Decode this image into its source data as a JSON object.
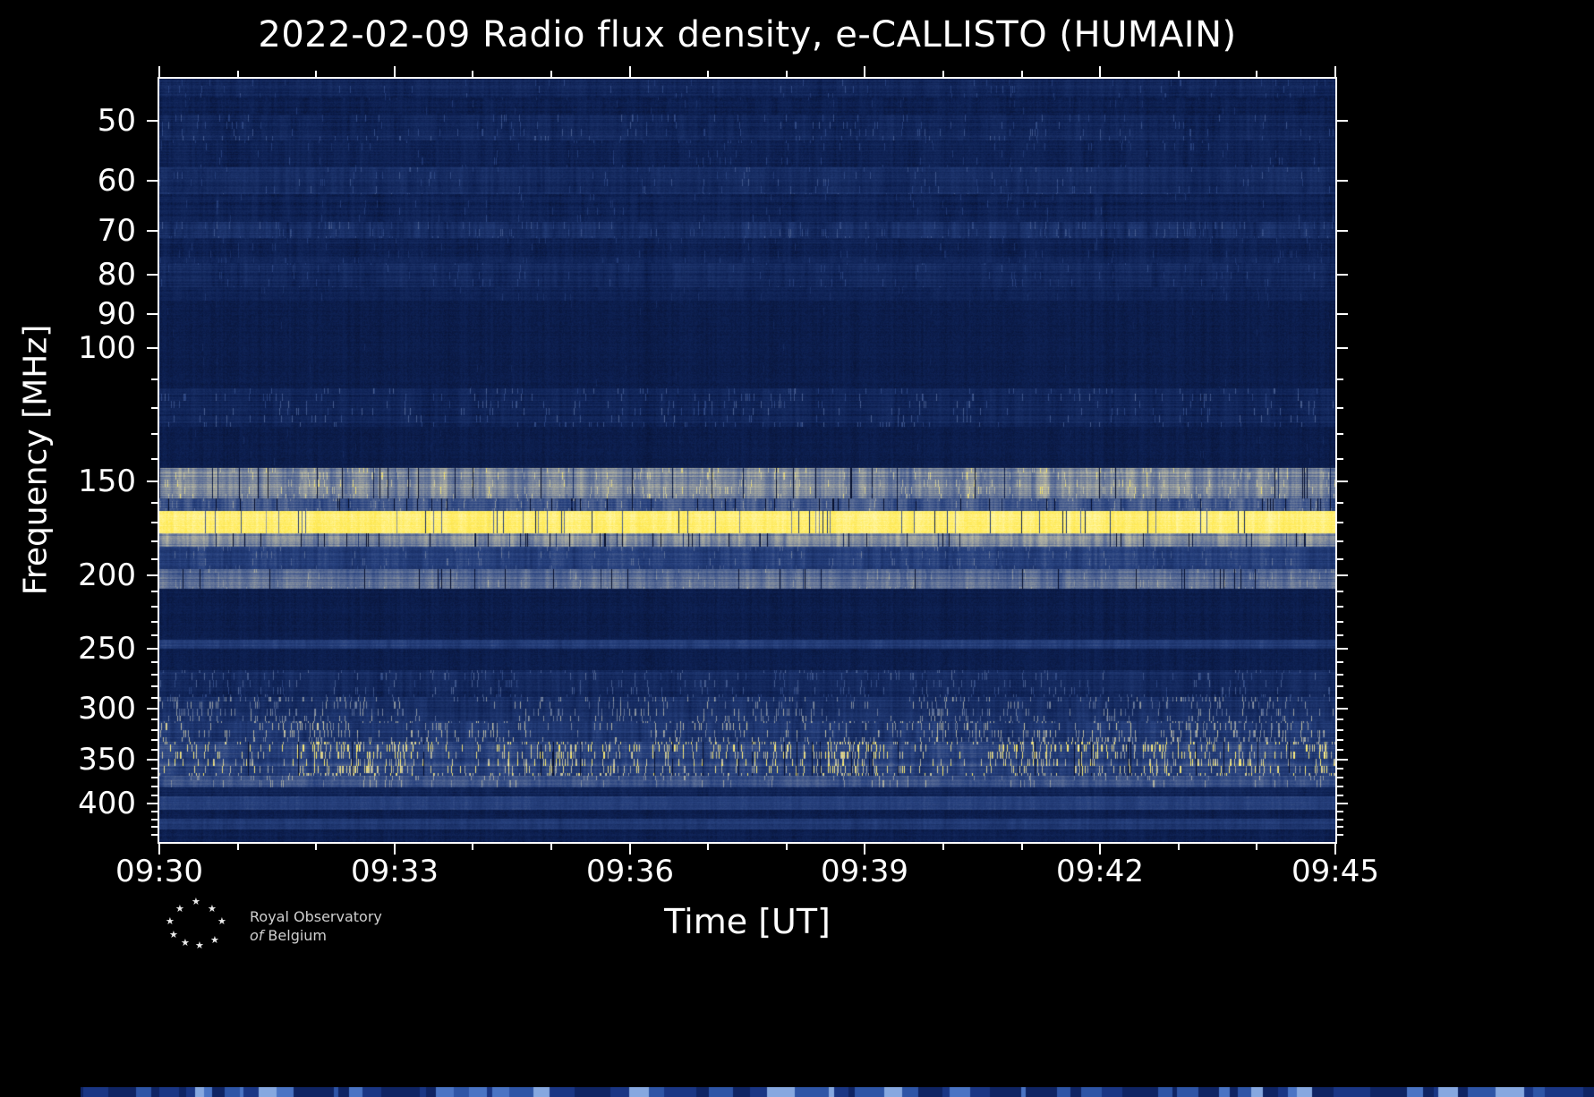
{
  "title": "2022-02-09 Radio flux density, e-CALLISTO (HUMAIN)",
  "axes": {
    "xlabel": "Time [UT]",
    "ylabel": "Frequency [MHz]",
    "x_tick_labels": [
      "09:30",
      "09:33",
      "09:36",
      "09:39",
      "09:42",
      "09:45"
    ],
    "y_tick_labels": [
      "50",
      "60",
      "70",
      "80",
      "90",
      "100",
      "150",
      "200",
      "250",
      "300",
      "350",
      "400"
    ]
  },
  "logo": {
    "line1": "Royal Observatory",
    "line2_italic": "of",
    "line2_text": "Belgium"
  },
  "chart_data": {
    "type": "heatmap",
    "title": "2022-02-09 Radio flux density, e-CALLISTO (HUMAIN)",
    "date": "2022-02-09",
    "instrument": "e-CALLISTO",
    "station": "HUMAIN",
    "xlabel": "Time [UT]",
    "ylabel": "Frequency [MHz]",
    "x_range_ut": [
      "09:30",
      "09:45"
    ],
    "x_major_tick_minutes": 3,
    "x_minor_tick_minutes": 1,
    "y_scale": "log",
    "y_axis_inverted": true,
    "y_range_mhz": [
      44,
      450
    ],
    "y_major_ticks_mhz": [
      50,
      60,
      70,
      80,
      90,
      100,
      150,
      200,
      250,
      300,
      350,
      400
    ],
    "y_minor_ticks_mhz": [
      110,
      120,
      130,
      140,
      160,
      170,
      180,
      190,
      210,
      220,
      230,
      240,
      260,
      270,
      280,
      290,
      310,
      320,
      330,
      340,
      360,
      370,
      380,
      390,
      410,
      420,
      430,
      440
    ],
    "background_level": 0.085,
    "colormap_stops": [
      [
        0.0,
        "#060f2d"
      ],
      [
        0.1,
        "#0d2052"
      ],
      [
        0.32,
        "#28427f"
      ],
      [
        0.5,
        "#5d6f97"
      ],
      [
        0.66,
        "#a0a4a0"
      ],
      [
        0.8,
        "#d6cf9f"
      ],
      [
        0.9,
        "#ffe94f"
      ],
      [
        1.0,
        "#fff7a8"
      ]
    ],
    "bands": [
      {
        "f_lo": 44,
        "f_hi": 46.5,
        "base": 0.13,
        "striation": 0.05,
        "row_jitter": 0.04,
        "speckle_p": 0.02,
        "speckle_amp": 0.2,
        "desc": "faint noisy strip at very top of plot"
      },
      {
        "f_lo": 46.5,
        "f_hi": 49,
        "base": 0.1,
        "striation": 0.035,
        "row_jitter": 0.03,
        "speckle_p": 0.012,
        "speckle_amp": 0.15,
        "desc": "dark blue background with weak texture"
      },
      {
        "f_lo": 49,
        "f_hi": 53,
        "base": 0.145,
        "striation": 0.055,
        "row_jitter": 0.05,
        "speckle_p": 0.03,
        "speckle_amp": 0.25,
        "desc": "slightly brighter speckled band near 50 MHz"
      },
      {
        "f_lo": 53,
        "f_hi": 57.5,
        "base": 0.115,
        "striation": 0.04,
        "row_jitter": 0.035,
        "speckle_p": 0.02,
        "speckle_amp": 0.2,
        "desc": "dark blue with sparse gray speckles"
      },
      {
        "f_lo": 57.5,
        "f_hi": 62.5,
        "base": 0.165,
        "striation": 0.06,
        "row_jitter": 0.055,
        "speckle_p": 0.03,
        "speckle_amp": 0.22,
        "desc": "brighter noisy band around 60 MHz"
      },
      {
        "f_lo": 62.5,
        "f_hi": 68,
        "base": 0.11,
        "striation": 0.04,
        "row_jitter": 0.03,
        "speckle_p": 0.015,
        "speckle_amp": 0.18,
        "desc": "dark blue background"
      },
      {
        "f_lo": 68,
        "f_hi": 71.5,
        "base": 0.185,
        "striation": 0.1,
        "row_jitter": 0.05,
        "speckle_p": 0.04,
        "speckle_amp": 0.2,
        "desc": "dashed brighter line near 70 MHz"
      },
      {
        "f_lo": 71.5,
        "f_hi": 77,
        "base": 0.12,
        "striation": 0.04,
        "row_jitter": 0.04,
        "speckle_p": 0.015,
        "speckle_amp": 0.15,
        "desc": "dark blue background"
      },
      {
        "f_lo": 77,
        "f_hi": 83,
        "base": 0.15,
        "striation": 0.055,
        "row_jitter": 0.05,
        "speckle_p": 0.02,
        "speckle_amp": 0.18,
        "desc": "weak striped band near 80 MHz"
      },
      {
        "f_lo": 83,
        "f_hi": 86.5,
        "base": 0.115,
        "striation": 0.03,
        "row_jitter": 0.03,
        "speckle_p": 0.01,
        "speckle_amp": 0.12,
        "desc": "dark blue background"
      },
      {
        "f_lo": 86.5,
        "f_hi": 113,
        "base": 0.082,
        "striation": 0.008,
        "row_jitter": 0.012,
        "speckle_p": 0.002,
        "speckle_amp": 0.08,
        "desc": "very quiet uniform dark band 87-113 MHz"
      },
      {
        "f_lo": 113,
        "f_hi": 127,
        "base": 0.135,
        "striation": 0.05,
        "row_jitter": 0.05,
        "speckle_p": 0.05,
        "speckle_amp": 0.3,
        "desc": "speckled RFI band between 100 and 150 MHz"
      },
      {
        "f_lo": 127,
        "f_hi": 144,
        "base": 0.082,
        "striation": 0.01,
        "row_jitter": 0.012,
        "speckle_p": 0.003,
        "speckle_amp": 0.08,
        "desc": "quiet uniform dark band"
      },
      {
        "f_lo": 144,
        "f_hi": 158,
        "base": 0.55,
        "striation": 0.16,
        "row_jitter": 0.1,
        "speckle_p": 0.05,
        "speckle_amp": 0.22,
        "crack_p": 0.04,
        "desc": "bright light-gray striated band ~145-158 MHz"
      },
      {
        "f_lo": 158,
        "f_hi": 164,
        "base": 0.38,
        "striation": 0.15,
        "row_jitter": 0.08,
        "speckle_p": 0.04,
        "speckle_amp": 0.2,
        "crack_p": 0.04,
        "desc": "transition band with vertical striations"
      },
      {
        "f_lo": 164,
        "f_hi": 176,
        "base": 0.94,
        "striation": 0.05,
        "row_jitter": 0.025,
        "speckle_p": 0.0,
        "speckle_amp": 0.0,
        "crack_p": 0.045,
        "desc": "saturated bright yellow emission band ~165-175 MHz with thin dark vertical cracks"
      },
      {
        "f_lo": 176,
        "f_hi": 183,
        "base": 0.56,
        "striation": 0.15,
        "row_jitter": 0.07,
        "speckle_p": 0.0,
        "speckle_amp": 0.0,
        "crack_p": 0.05,
        "desc": "yellow-gray band below the bright band"
      },
      {
        "f_lo": 183,
        "f_hi": 196,
        "base": 0.3,
        "striation": 0.11,
        "row_jitter": 0.06,
        "speckle_p": 0.03,
        "speckle_amp": 0.2,
        "desc": "medium blue-gray striated band"
      },
      {
        "f_lo": 196,
        "f_hi": 208,
        "base": 0.47,
        "striation": 0.11,
        "row_jitter": 0.07,
        "speckle_p": 0.025,
        "speckle_amp": 0.15,
        "crack_p": 0.02,
        "desc": "light gray-beige band near 200 MHz"
      },
      {
        "f_lo": 208,
        "f_hi": 243,
        "base": 0.083,
        "striation": 0.009,
        "row_jitter": 0.013,
        "speckle_p": 0.0,
        "speckle_amp": 0.0,
        "desc": "quiet dark band 208-243 MHz"
      },
      {
        "f_lo": 243,
        "f_hi": 250,
        "base": 0.28,
        "striation": 0.07,
        "row_jitter": 0.05,
        "speckle_p": 0.0,
        "speckle_amp": 0.0,
        "desc": "thin gray band near 247 MHz"
      },
      {
        "f_lo": 250,
        "f_hi": 267,
        "base": 0.09,
        "striation": 0.012,
        "row_jitter": 0.015,
        "speckle_p": 0.0,
        "speckle_amp": 0.0,
        "desc": "quiet dark band"
      },
      {
        "f_lo": 267,
        "f_hi": 290,
        "base": 0.165,
        "striation": 0.06,
        "row_jitter": 0.05,
        "speckle_p": 0.06,
        "speckle_amp": 0.3,
        "desc": "noisy blue speckled band ~270-290 MHz"
      },
      {
        "f_lo": 290,
        "f_hi": 312,
        "base": 0.2,
        "striation": 0.08,
        "row_jitter": 0.06,
        "speckle_p": 0.09,
        "speckle_amp": 0.45,
        "desc": "speckled band near 300 MHz with bright dots"
      },
      {
        "f_lo": 312,
        "f_hi": 332,
        "base": 0.24,
        "striation": 0.1,
        "row_jitter": 0.07,
        "speckle_p": 0.11,
        "speckle_amp": 0.5,
        "desc": "busy speckled band 312-332 MHz"
      },
      {
        "f_lo": 332,
        "f_hi": 368,
        "base": 0.32,
        "striation": 0.12,
        "row_jitter": 0.08,
        "speckle_p": 0.17,
        "speckle_amp": 0.62,
        "crack_p": 0.02,
        "desc": "intense band ~335-365 MHz with dense bright yellow vertical dashes"
      },
      {
        "f_lo": 368,
        "f_hi": 381,
        "base": 0.37,
        "striation": 0.1,
        "row_jitter": 0.07,
        "speckle_p": 0.05,
        "speckle_amp": 0.3,
        "desc": "light gray band below the speckle band"
      },
      {
        "f_lo": 381,
        "f_hi": 392,
        "base": 0.12,
        "striation": 0.03,
        "row_jitter": 0.03,
        "speckle_p": 0.0,
        "speckle_amp": 0.0,
        "desc": "dark gap"
      },
      {
        "f_lo": 392,
        "f_hi": 408,
        "base": 0.29,
        "striation": 0.05,
        "row_jitter": 0.05,
        "speckle_p": 0.0,
        "speckle_amp": 0.0,
        "desc": "gray band near 400 MHz"
      },
      {
        "f_lo": 408,
        "f_hi": 420,
        "base": 0.1,
        "striation": 0.02,
        "row_jitter": 0.02,
        "speckle_p": 0.0,
        "speckle_amp": 0.0,
        "desc": "dark gap"
      },
      {
        "f_lo": 420,
        "f_hi": 434,
        "base": 0.25,
        "striation": 0.05,
        "row_jitter": 0.04,
        "speckle_p": 0.0,
        "speckle_amp": 0.0,
        "desc": "gray band near 425 MHz"
      },
      {
        "f_lo": 434,
        "f_hi": 451,
        "base": 0.1,
        "striation": 0.02,
        "row_jitter": 0.025,
        "speckle_p": 0.0,
        "speckle_amp": 0.0,
        "desc": "dark bottom edge of spectrogram"
      }
    ]
  }
}
